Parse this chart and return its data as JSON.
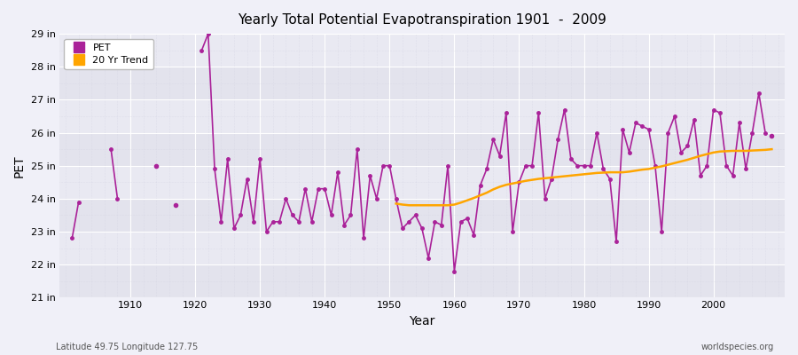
{
  "title": "Yearly Total Potential Evapotranspiration 1901  -  2009",
  "xlabel": "Year",
  "ylabel": "PET",
  "subtitle_left": "Latitude 49.75 Longitude 127.75",
  "subtitle_right": "worldspecies.org",
  "ylim": [
    21,
    29
  ],
  "ytick_values": [
    21,
    22,
    23,
    24,
    25,
    26,
    27,
    28,
    29
  ],
  "ytick_labels": [
    "21 in",
    "22 in",
    "23 in",
    "24 in",
    "25 in",
    "26 in",
    "27 in",
    "28 in",
    "29 in"
  ],
  "xlim": [
    1899,
    2011
  ],
  "xtick_values": [
    1910,
    1920,
    1930,
    1940,
    1950,
    1960,
    1970,
    1980,
    1990,
    2000
  ],
  "pet_color": "#AA2299",
  "trend_color": "#FFA500",
  "fig_bg": "#F0F0F8",
  "ax_bg": "#E8E8F0",
  "legend_pet": "PET",
  "legend_trend": "20 Yr Trend",
  "pet_segments": [
    {
      "years": [
        1901,
        1902
      ],
      "values": [
        22.8,
        23.9
      ]
    },
    {
      "years": [
        1907,
        1908
      ],
      "values": [
        25.5,
        24.0
      ]
    },
    {
      "years": [
        1914
      ],
      "values": [
        25.0
      ]
    },
    {
      "years": [
        1917
      ],
      "values": [
        23.8
      ]
    },
    {
      "years": [
        1921,
        1922,
        1923,
        1924,
        1925,
        1926,
        1927,
        1928,
        1929,
        1930,
        1931,
        1932,
        1933,
        1934,
        1935,
        1936,
        1937,
        1938,
        1939,
        1940,
        1941,
        1942,
        1943,
        1944,
        1945,
        1946,
        1947,
        1948,
        1949,
        1950,
        1951,
        1952,
        1953,
        1954,
        1955,
        1956,
        1957,
        1958,
        1959,
        1960,
        1961,
        1962,
        1963,
        1964,
        1965,
        1966,
        1967,
        1968,
        1969,
        1970,
        1971,
        1972,
        1973,
        1974,
        1975,
        1976,
        1977,
        1978,
        1979,
        1980,
        1981,
        1982,
        1983,
        1984,
        1985,
        1986,
        1987,
        1988,
        1989,
        1990,
        1991,
        1992,
        1993,
        1994,
        1995,
        1996,
        1997,
        1998,
        1999,
        2000,
        2001,
        2002,
        2003,
        2004,
        2005,
        2006,
        2007,
        2008
      ],
      "values": [
        28.5,
        29.0,
        24.9,
        23.3,
        25.2,
        23.1,
        23.5,
        24.6,
        23.3,
        25.2,
        23.0,
        23.3,
        23.3,
        24.0,
        23.5,
        23.3,
        24.3,
        23.3,
        24.3,
        24.3,
        23.5,
        24.8,
        23.2,
        23.5,
        25.5,
        22.8,
        24.7,
        24.0,
        25.0,
        25.0,
        24.0,
        23.1,
        23.3,
        23.5,
        23.1,
        22.2,
        23.3,
        23.2,
        25.0,
        21.8,
        23.3,
        23.4,
        22.9,
        24.4,
        24.9,
        25.8,
        25.3,
        26.6,
        23.0,
        24.5,
        25.0,
        25.0,
        26.6,
        24.0,
        24.6,
        25.8,
        26.7,
        25.2,
        25.0,
        25.0,
        25.0,
        26.0,
        24.9,
        24.6,
        22.7,
        26.1,
        25.4,
        26.3,
        26.2,
        26.1,
        25.0,
        23.0,
        26.0,
        26.5,
        25.4,
        25.6,
        26.4,
        24.7,
        25.0,
        26.7,
        26.6,
        25.0,
        24.7,
        26.3,
        24.9,
        26.0,
        27.2,
        26.0
      ]
    }
  ],
  "isolated_points": [
    {
      "year": 2009,
      "value": 25.9
    }
  ],
  "trend_years": [
    1951,
    1952,
    1953,
    1954,
    1955,
    1956,
    1957,
    1958,
    1959,
    1960,
    1961,
    1962,
    1963,
    1964,
    1965,
    1966,
    1967,
    1968,
    1969,
    1970,
    1971,
    1972,
    1973,
    1974,
    1975,
    1976,
    1977,
    1978,
    1979,
    1980,
    1981,
    1982,
    1983,
    1984,
    1985,
    1986,
    1987,
    1988,
    1989,
    1990,
    1991,
    1992,
    1993,
    1994,
    1995,
    1996,
    1997,
    1998,
    1999,
    2000,
    2001,
    2002,
    2003,
    2004,
    2005,
    2006,
    2007,
    2008,
    2009
  ],
  "trend_values": [
    23.85,
    23.82,
    23.8,
    23.8,
    23.8,
    23.8,
    23.8,
    23.8,
    23.8,
    23.82,
    23.88,
    23.95,
    24.02,
    24.1,
    24.18,
    24.28,
    24.36,
    24.42,
    24.46,
    24.5,
    24.54,
    24.57,
    24.6,
    24.62,
    24.64,
    24.66,
    24.68,
    24.7,
    24.72,
    24.74,
    24.76,
    24.78,
    24.79,
    24.8,
    24.8,
    24.8,
    24.82,
    24.85,
    24.88,
    24.9,
    24.94,
    24.98,
    25.03,
    25.08,
    25.13,
    25.18,
    25.24,
    25.3,
    25.35,
    25.4,
    25.43,
    25.44,
    25.45,
    25.45,
    25.45,
    25.46,
    25.47,
    25.48,
    25.5
  ]
}
